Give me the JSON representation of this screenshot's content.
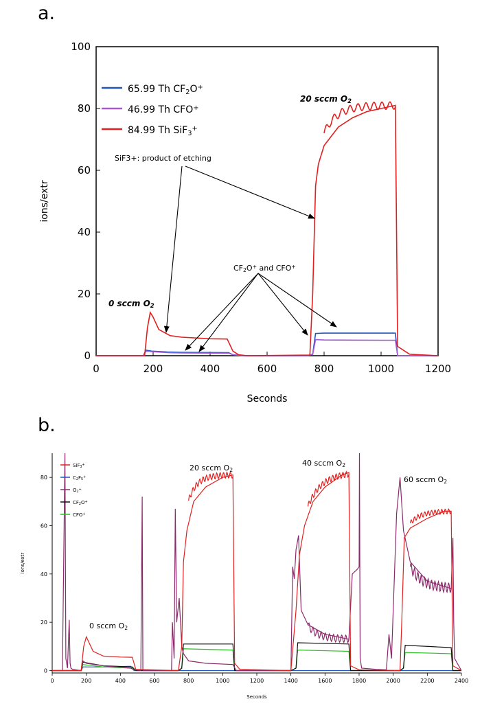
{
  "panels": {
    "a": "a.",
    "b": "b."
  },
  "chart_data": [
    {
      "type": "line",
      "xlabel": "Seconds",
      "ylabel": "ions/extr",
      "xlim": [
        0,
        1200
      ],
      "ylim": [
        0,
        100
      ],
      "xticks": [
        0,
        200,
        400,
        600,
        800,
        1000,
        1200
      ],
      "yticks": [
        0,
        20,
        40,
        60,
        80,
        100
      ],
      "legend_position": "top-left",
      "legend": [
        {
          "label": "65.99 Th CF",
          "sub": "2",
          "rest": "O",
          "sup": "+",
          "color": "#2255bb"
        },
        {
          "label": "46.99 Th CFO",
          "sub": "",
          "rest": "",
          "sup": "+",
          "color": "#a45ad6"
        },
        {
          "label": "84.99 Th SiF",
          "sub": "3",
          "rest": "",
          "sup": "+",
          "color": "#e0201f"
        }
      ],
      "series": [
        {
          "name": "65.99 Th CF2O+",
          "color": "#2255bb",
          "x": [
            0,
            165,
            175,
            195,
            250,
            300,
            465,
            480,
            520,
            740,
            760,
            770,
            800,
            1000,
            1050,
            1058,
            1200
          ],
          "y": [
            0,
            0,
            1.8,
            1.5,
            1.2,
            1.1,
            1,
            0.3,
            0,
            0,
            0.5,
            7.2,
            7.3,
            7.3,
            7.3,
            0,
            0
          ]
        },
        {
          "name": "46.99 Th CFO+",
          "color": "#a45ad6",
          "x": [
            0,
            165,
            175,
            195,
            250,
            300,
            465,
            480,
            520,
            740,
            760,
            770,
            800,
            1000,
            1050,
            1058,
            1200
          ],
          "y": [
            0,
            0,
            1.5,
            1.3,
            1.0,
            0.9,
            0.8,
            0.3,
            0,
            0,
            0.4,
            5.2,
            5.1,
            5.0,
            5.0,
            0,
            0
          ]
        },
        {
          "name": "84.99 Th SiF3+",
          "color": "#e0201f",
          "x": [
            0,
            170,
            180,
            190,
            200,
            220,
            260,
            300,
            400,
            460,
            480,
            500,
            530,
            750,
            760,
            770,
            780,
            800,
            850,
            900,
            950,
            1000,
            1050,
            1058,
            1100,
            1200
          ],
          "y": [
            0,
            0,
            9,
            14,
            12.5,
            8.5,
            6.5,
            6,
            5.5,
            5.4,
            1.5,
            0.3,
            0,
            0.2,
            20,
            55,
            62,
            68,
            74,
            77,
            79,
            80,
            81,
            3,
            0.5,
            0
          ]
        }
      ],
      "annotations": {
        "o2_20": "20 sccm O",
        "o2_20_sub": "2",
        "o2_0": "0 sccm O",
        "o2_0_sub": "2",
        "sif3_note": "SiF3+: product of etching",
        "cf2o_note_1": "CF",
        "cf2o_note_sub": "2",
        "cf2o_note_2": "O",
        "cf2o_note_sup": "+",
        "cf2o_note_3": " and CFO",
        "cf2o_note_sup2": "+"
      }
    },
    {
      "type": "line",
      "xlabel": "Seconds",
      "ylabel": "ions/extr",
      "xlim": [
        0,
        2400
      ],
      "ylim": [
        -1,
        90
      ],
      "xticks": [
        0,
        200,
        400,
        600,
        800,
        1000,
        1200,
        1400,
        1600,
        1800,
        2000,
        2200,
        2400
      ],
      "yticks": [
        0,
        20,
        40,
        60,
        80
      ],
      "legend_position": "top-left",
      "legend": [
        {
          "label": "SiF",
          "sub": "3",
          "sup": "+",
          "color": "#e0201f"
        },
        {
          "label": "C",
          "sub": "2",
          "mid": "F",
          "sub2": "5",
          "sup": "+",
          "color": "#2255bb"
        },
        {
          "label": "O",
          "sub": "2",
          "sup": "+",
          "color": "#8b2a6b"
        },
        {
          "label": "CF",
          "sub": "2",
          "mid": "O",
          "sup": "+",
          "color": "#111111"
        },
        {
          "label": "CFO",
          "sub": "",
          "sup": "+",
          "color": "#27c21f"
        }
      ],
      "series": [
        {
          "name": "SiF3+",
          "color": "#e0201f",
          "x": [
            0,
            170,
            185,
            200,
            240,
            300,
            400,
            470,
            490,
            740,
            760,
            770,
            790,
            830,
            900,
            1000,
            1060,
            1070,
            1100,
            1400,
            1430,
            1450,
            1480,
            1530,
            1600,
            1700,
            1740,
            1750,
            1800,
            2040,
            2050,
            2065,
            2100,
            2200,
            2300,
            2340,
            2350,
            2400
          ],
          "y": [
            0,
            0,
            10,
            14,
            8,
            6,
            5.6,
            5.5,
            0.5,
            0,
            10,
            45,
            58,
            70,
            76,
            80,
            81,
            3,
            0.5,
            0,
            25,
            48,
            60,
            70,
            76,
            81,
            82,
            2,
            0.3,
            0,
            20,
            55,
            59,
            63,
            66,
            66,
            2,
            0
          ]
        },
        {
          "name": "C2F5+",
          "color": "#2255bb",
          "x": [
            0,
            170,
            180,
            300,
            460,
            480,
            2400
          ],
          "y": [
            0,
            0,
            1.5,
            1.5,
            1.8,
            0,
            0
          ]
        },
        {
          "name": "O2+",
          "color": "#8b2a6b",
          "x": [
            0,
            60,
            75,
            80,
            90,
            100,
            105,
            110,
            120,
            170,
            180,
            200,
            300,
            460,
            480,
            520,
            528,
            532,
            540,
            700,
            705,
            715,
            722,
            730,
            745,
            760,
            770,
            800,
            900,
            1060,
            1080,
            1400,
            1410,
            1420,
            1430,
            1445,
            1460,
            1500,
            1600,
            1740,
            1760,
            1790,
            1800,
            1802,
            1806,
            1815,
            1900,
            1960,
            1975,
            1990,
            2020,
            2040,
            2060,
            2100,
            2200,
            2340,
            2350,
            2355,
            2360,
            2400
          ],
          "y": [
            0,
            0,
            90,
            5,
            1,
            21,
            3,
            1,
            0.5,
            0,
            4,
            3,
            2,
            1,
            0.3,
            0,
            72,
            0,
            0,
            0,
            20,
            5,
            67,
            20,
            30,
            10,
            7,
            4,
            3,
            2.5,
            0,
            0,
            43,
            38,
            50,
            56,
            25,
            19,
            15,
            13,
            40,
            42,
            43,
            90,
            5,
            1,
            0.5,
            0.3,
            15,
            5,
            65,
            80,
            58,
            45,
            37,
            34,
            55,
            20,
            5,
            0
          ]
        },
        {
          "name": "CF2O+",
          "color": "#111111",
          "x": [
            0,
            170,
            180,
            300,
            470,
            490,
            740,
            760,
            770,
            1060,
            1070,
            1400,
            1430,
            1440,
            1740,
            1750,
            2040,
            2060,
            2070,
            2340,
            2350,
            2400
          ],
          "y": [
            0,
            0,
            3.5,
            2,
            1.5,
            0,
            0,
            1,
            11,
            11,
            0,
            0,
            1,
            11.5,
            11,
            0,
            0,
            1,
            10.5,
            9.5,
            0,
            0
          ]
        },
        {
          "name": "CFO+",
          "color": "#27c21f",
          "x": [
            0,
            170,
            180,
            300,
            470,
            490,
            740,
            760,
            770,
            1060,
            1070,
            1400,
            1430,
            1440,
            1740,
            1750,
            2040,
            2060,
            2070,
            2340,
            2350,
            2400
          ],
          "y": [
            0,
            0,
            2.5,
            1.5,
            1,
            0,
            0,
            1,
            9,
            8.5,
            0,
            0,
            1,
            8.5,
            8,
            0,
            0,
            1,
            7.5,
            7,
            0,
            0
          ]
        }
      ],
      "annotations": {
        "o2_0": "0 sccm O",
        "o2_20": "20 sccm O",
        "o2_40": "40 sccm O",
        "o2_60": "60 sccm O",
        "sub": "2"
      }
    }
  ]
}
